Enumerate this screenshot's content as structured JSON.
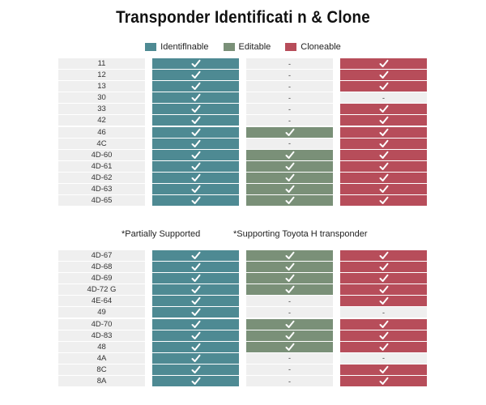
{
  "title": "Transponder Identificati n & Clone",
  "legend": [
    {
      "label": "Identiflnable",
      "color": "#4e8a93"
    },
    {
      "label": "Editable",
      "color": "#7a9078"
    },
    {
      "label": "Cloneable",
      "color": "#b74d5a"
    }
  ],
  "cell_empty_text": "-",
  "icons": {
    "check": "check-icon"
  },
  "table1": [
    {
      "name": "11",
      "identifiable": true,
      "editable": false,
      "cloneable": true
    },
    {
      "name": "12",
      "identifiable": true,
      "editable": false,
      "cloneable": true
    },
    {
      "name": "13",
      "identifiable": true,
      "editable": false,
      "cloneable": true
    },
    {
      "name": "30",
      "identifiable": true,
      "editable": false,
      "cloneable": false
    },
    {
      "name": "33",
      "identifiable": true,
      "editable": false,
      "cloneable": true
    },
    {
      "name": "42",
      "identifiable": true,
      "editable": false,
      "cloneable": true
    },
    {
      "name": "46",
      "identifiable": true,
      "editable": true,
      "cloneable": true
    },
    {
      "name": "4C",
      "identifiable": true,
      "editable": false,
      "cloneable": true
    },
    {
      "name": "4D-60",
      "identifiable": true,
      "editable": true,
      "cloneable": true
    },
    {
      "name": "4D-61",
      "identifiable": true,
      "editable": true,
      "cloneable": true
    },
    {
      "name": "4D-62",
      "identifiable": true,
      "editable": true,
      "cloneable": true
    },
    {
      "name": "4D-63",
      "identifiable": true,
      "editable": true,
      "cloneable": true
    },
    {
      "name": "4D-65",
      "identifiable": true,
      "editable": true,
      "cloneable": true
    }
  ],
  "notes": {
    "partial": "*Partially Supported",
    "toyota": "*Supporting Toyota H transponder"
  },
  "table2": [
    {
      "name": "4D-67",
      "identifiable": true,
      "editable": true,
      "cloneable": true
    },
    {
      "name": "4D-68",
      "identifiable": true,
      "editable": true,
      "cloneable": true
    },
    {
      "name": "4D-69",
      "identifiable": true,
      "editable": true,
      "cloneable": true
    },
    {
      "name": "4D-72 G",
      "identifiable": true,
      "editable": true,
      "cloneable": true
    },
    {
      "name": "4E-64",
      "identifiable": true,
      "editable": false,
      "cloneable": true
    },
    {
      "name": "49",
      "identifiable": true,
      "editable": false,
      "cloneable": false
    },
    {
      "name": "4D-70",
      "identifiable": true,
      "editable": true,
      "cloneable": true
    },
    {
      "name": "4D-83",
      "identifiable": true,
      "editable": true,
      "cloneable": true
    },
    {
      "name": "48",
      "identifiable": true,
      "editable": true,
      "cloneable": true
    },
    {
      "name": "4A",
      "identifiable": true,
      "editable": false,
      "cloneable": false
    },
    {
      "name": "8C",
      "identifiable": true,
      "editable": false,
      "cloneable": true
    },
    {
      "name": "8A",
      "identifiable": true,
      "editable": false,
      "cloneable": true
    }
  ]
}
